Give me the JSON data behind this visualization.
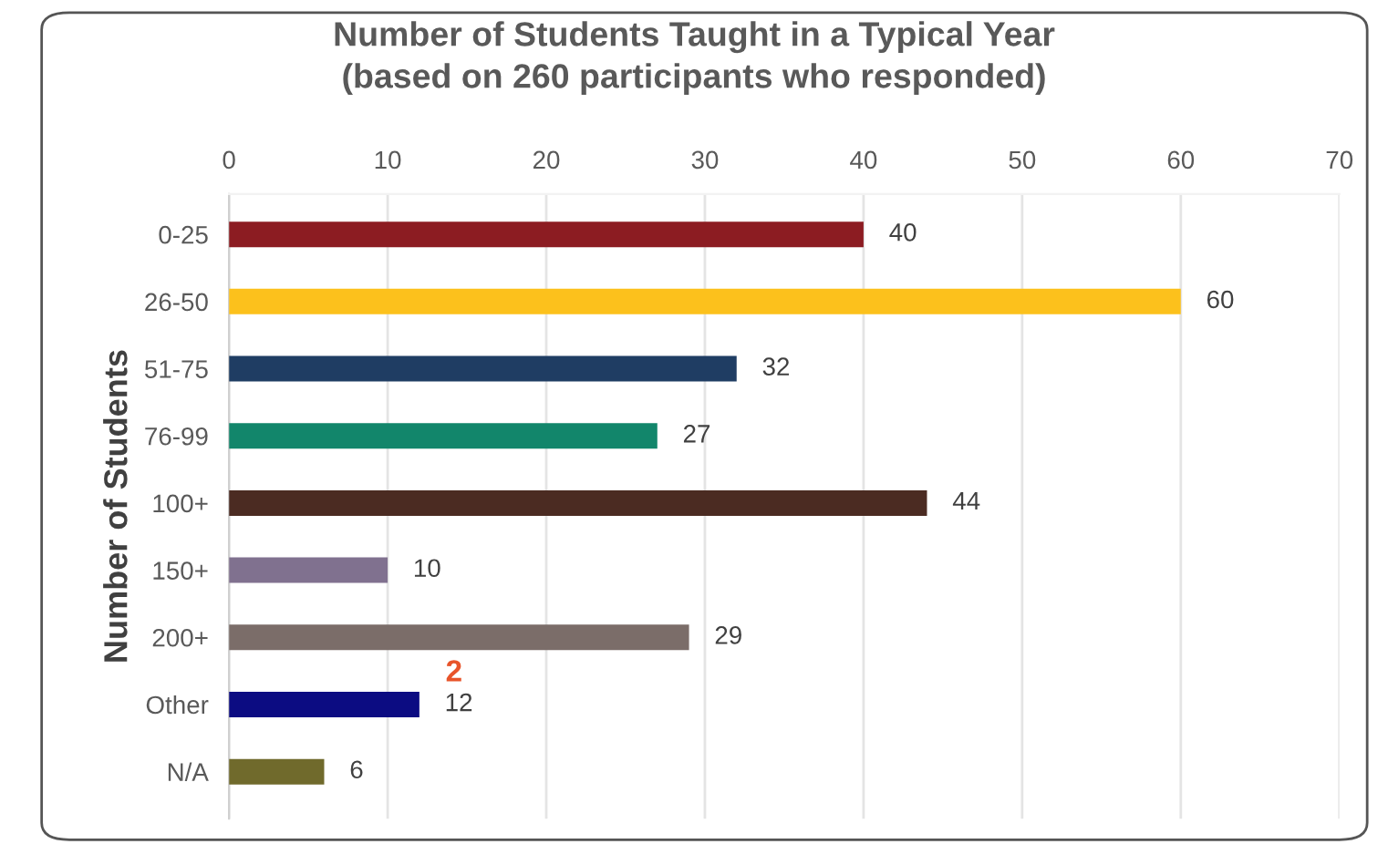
{
  "chart_data": {
    "type": "bar",
    "orientation": "horizontal",
    "title": "Number of Students Taught in a Typical Year\n(based on 260 participants who responded)",
    "ylabel": "Number of Students",
    "categories": [
      "0-25",
      "26-50",
      "51-75",
      "76-99",
      "100+",
      "150+",
      "200+",
      "Other",
      "N/A"
    ],
    "values": [
      40,
      60,
      32,
      27,
      44,
      10,
      29,
      12,
      6
    ],
    "colors": [
      "#8c1c22",
      "#fcc11c",
      "#1f3d63",
      "#12866b",
      "#4b2b22",
      "#80718f",
      "#7b6d69",
      "#0c0c82",
      "#706a2c"
    ],
    "xlim": [
      0,
      70
    ],
    "xticks": [
      0,
      10,
      20,
      30,
      40,
      50,
      60,
      70
    ],
    "grid": "x",
    "data_labels": true,
    "annotations": [
      "2"
    ]
  }
}
